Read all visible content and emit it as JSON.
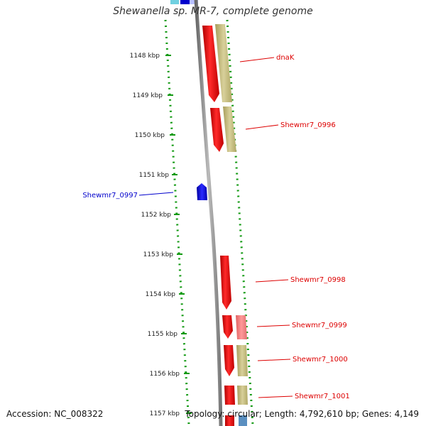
{
  "title": "Shewanella sp. MR-7, complete genome",
  "accession": "Accession: NC_008322",
  "summary": "Topology: circular; Length: 4,792,610 bp; Genes: 4,149",
  "ticks": [
    {
      "label": "1148 kbp"
    },
    {
      "label": "1149 kbp"
    },
    {
      "label": "1150 kbp"
    },
    {
      "label": "1151 kbp"
    },
    {
      "label": "1152 kbp"
    },
    {
      "label": "1153 kbp"
    },
    {
      "label": "1154 kbp"
    },
    {
      "label": "1155 kbp"
    },
    {
      "label": "1156 kbp"
    },
    {
      "label": "1157 kbp"
    }
  ],
  "genes": [
    {
      "name": "dnaK",
      "color": "#dd0000",
      "strand": "+"
    },
    {
      "name": "Shewmr7_0996",
      "color": "#dd0000",
      "strand": "+"
    },
    {
      "name": "Shewmr7_0997",
      "color": "#0000cc",
      "strand": "-"
    },
    {
      "name": "Shewmr7_0998",
      "color": "#dd0000",
      "strand": "+"
    },
    {
      "name": "Shewmr7_0999",
      "color": "#dd0000",
      "strand": "+"
    },
    {
      "name": "Shewmr7_1000",
      "color": "#dd0000",
      "strand": "+"
    },
    {
      "name": "Shewmr7_1001",
      "color": "#dd0000",
      "strand": "+"
    }
  ],
  "colors": {
    "plus_gene": "#ee1111",
    "minus_gene": "#0000dd",
    "cog_track": "#c8c088",
    "backbone": "#888888",
    "tick_dots": "#119911"
  }
}
